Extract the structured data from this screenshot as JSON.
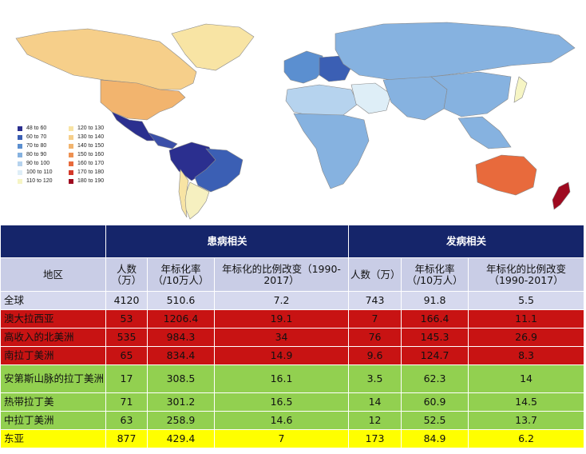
{
  "map": {
    "legend": {
      "left_items": [
        {
          "label": "48  to  60",
          "color": "#2b2f8f"
        },
        {
          "label": "60  to  70",
          "color": "#3b5fb4"
        },
        {
          "label": "70  to  80",
          "color": "#5b8fd0"
        },
        {
          "label": "80  to  90",
          "color": "#86b2e0"
        },
        {
          "label": "90  to  100",
          "color": "#b6d3ee"
        },
        {
          "label": "100  to  110",
          "color": "#deeef7"
        },
        {
          "label": "110  to  120",
          "color": "#f6f5c4"
        }
      ],
      "right_items": [
        {
          "label": "120  to  130",
          "color": "#f8e4a4"
        },
        {
          "label": "130  to  140",
          "color": "#f6cf8a"
        },
        {
          "label": "140  to  150",
          "color": "#f2b46e"
        },
        {
          "label": "150  to  160",
          "color": "#ee9152"
        },
        {
          "label": "160  to  170",
          "color": "#e86a3c"
        },
        {
          "label": "170  to  180",
          "color": "#d4392a"
        },
        {
          "label": "180  to  190",
          "color": "#9e0a20"
        }
      ]
    },
    "colors": {
      "north_america": "#f6cf8a",
      "usa": "#f2b46e",
      "mexico": "#2b2f8f",
      "central_america": "#3b4fa8",
      "south_america_north": "#2b2f8f",
      "brazil": "#3b5fb4",
      "south_america_south": "#f6f0c0",
      "chile": "#f8e4a4",
      "europe": "#5b8fd0",
      "eastern_europe": "#3b5fb4",
      "russia": "#86b2e0",
      "africa_north": "#b6d3ee",
      "africa": "#86b2e0",
      "middle_east": "#deeef7",
      "asia": "#86b2e0",
      "china": "#86b2e0",
      "japan": "#f6f5c4",
      "australia": "#e86a3c",
      "new_zealand": "#9e0a20",
      "greenland": "#f8e4a4"
    }
  },
  "table": {
    "header": {
      "group1": "患病相关",
      "group2": "发病相关"
    },
    "subheader": {
      "region": "地区",
      "people": "人数（万）",
      "rate": "年标化率（/10万人）",
      "change": "年标化的比例改变（1990-2017）",
      "people2": "人数（万）",
      "rate2": "年标化率（/10万人）",
      "change2": "年标化的比例改变（1990-2017）"
    },
    "rows": [
      {
        "region": "全球",
        "p_people": "4120",
        "p_rate": "510.6",
        "p_change": "7.2",
        "i_people": "743",
        "i_rate": "91.8",
        "i_change": "5.5",
        "color": "#d6d9ee"
      },
      {
        "region": "澳大拉西亚",
        "p_people": "53",
        "p_rate": "1206.4",
        "p_change": "19.1",
        "i_people": "7",
        "i_rate": "166.4",
        "i_change": "11.1",
        "color": "#c81313"
      },
      {
        "region": "高收入的北美洲",
        "p_people": "535",
        "p_rate": "984.3",
        "p_change": "34",
        "i_people": "76",
        "i_rate": "145.3",
        "i_change": "26.9",
        "color": "#c81313"
      },
      {
        "region": "南拉丁美洲",
        "p_people": "65",
        "p_rate": "834.4",
        "p_change": "14.9",
        "i_people": "9.6",
        "i_rate": "124.7",
        "i_change": "8.3",
        "color": "#c81313"
      },
      {
        "region": "安第斯山脉的拉丁美洲",
        "p_people": "17",
        "p_rate": "308.5",
        "p_change": "16.1",
        "i_people": "3.5",
        "i_rate": "62.3",
        "i_change": "14",
        "color": "#92d050"
      },
      {
        "region": "热带拉丁美",
        "p_people": "71",
        "p_rate": "301.2",
        "p_change": "16.5",
        "i_people": "14",
        "i_rate": "60.9",
        "i_change": "14.5",
        "color": "#92d050"
      },
      {
        "region": "中拉丁美洲",
        "p_people": "63",
        "p_rate": "258.9",
        "p_change": "14.6",
        "i_people": "12",
        "i_rate": "52.5",
        "i_change": "13.7",
        "color": "#92d050"
      },
      {
        "region": "东亚",
        "p_people": "877",
        "p_rate": "429.4",
        "p_change": "7",
        "i_people": "173",
        "i_rate": "84.9",
        "i_change": "6.2",
        "color": "#ffff00"
      }
    ]
  }
}
